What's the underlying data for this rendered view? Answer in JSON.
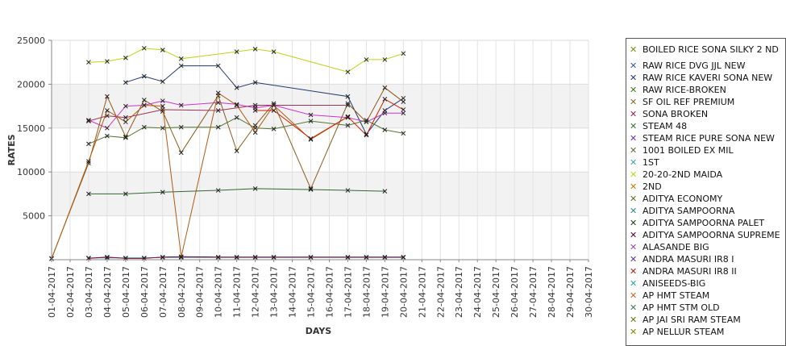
{
  "chart_data": {
    "type": "line",
    "xlabel": "DAYS",
    "ylabel": "RATES",
    "ylim": [
      0,
      25000
    ],
    "yticks": [
      5000,
      10000,
      15000,
      20000,
      25000
    ],
    "categories": [
      "01-04-2017",
      "02-04-2017",
      "03-04-2017",
      "04-04-2017",
      "05-04-2017",
      "06-04-2017",
      "07-04-2017",
      "08-04-2017",
      "09-04-2017",
      "10-04-2017",
      "11-04-2017",
      "12-04-2017",
      "13-04-2017",
      "14-04-2017",
      "15-04-2017",
      "16-04-2017",
      "17-04-2017",
      "18-04-2017",
      "19-04-2017",
      "20-04-2017",
      "21-04-2017",
      "22-04-2017",
      "23-04-2017",
      "24-04-2017",
      "25-04-2017",
      "26-04-2017",
      "27-04-2017",
      "28-04-2017",
      "29-04-2017",
      "30-04-2017"
    ],
    "grid": true,
    "legend_position": "right",
    "series": [
      {
        "name": "BOILED RICE SONA SILKY 2 ND",
        "color": "#bcd41c",
        "values": [
          null,
          null,
          22500,
          22600,
          23000,
          24100,
          23900,
          22900,
          null,
          null,
          23700,
          24000,
          23700,
          null,
          null,
          null,
          21400,
          22800,
          22800,
          23500,
          null,
          null,
          null,
          null,
          null,
          null,
          null,
          null,
          null,
          null
        ]
      },
      {
        "name": "RAW RICE DVG JJL NEW",
        "color": "#1f3a6e",
        "values": [
          null,
          null,
          null,
          null,
          20200,
          20900,
          20300,
          22100,
          null,
          22100,
          19600,
          20200,
          null,
          null,
          null,
          null,
          18600,
          14300,
          17000,
          18400,
          null,
          null,
          null,
          null,
          null,
          null,
          null,
          null,
          null,
          null
        ]
      },
      {
        "name": "RAW RICE KAVERI SONA NEW",
        "color": "#cc33cc",
        "values": [
          null,
          null,
          15900,
          15000,
          17500,
          17600,
          18100,
          17600,
          null,
          17900,
          17700,
          17300,
          17600,
          null,
          16500,
          null,
          16200,
          15700,
          16700,
          16700,
          null,
          null,
          null,
          null,
          null,
          null,
          null,
          null,
          null,
          null
        ]
      },
      {
        "name": "RAW RICE-BROKEN",
        "color": "#336633",
        "values": [
          null,
          null,
          7500,
          null,
          7500,
          null,
          7700,
          null,
          null,
          7900,
          null,
          8100,
          null,
          null,
          8000,
          null,
          7900,
          null,
          7800,
          null,
          null,
          null,
          null,
          null,
          null,
          null,
          null,
          null,
          null,
          null
        ]
      },
      {
        "name": "SF OIL REF PREMIUM",
        "color": "#8a5a1a",
        "values": [
          150,
          null,
          11000,
          18600,
          14000,
          18200,
          16900,
          12200,
          null,
          18700,
          12400,
          15300,
          17800,
          null,
          8100,
          null,
          17800,
          15700,
          19600,
          18000,
          null,
          null,
          null,
          null,
          null,
          null,
          null,
          null,
          null,
          null
        ]
      },
      {
        "name": "SONA BROKEN",
        "color": "#993355",
        "values": [
          null,
          null,
          15800,
          16400,
          16200,
          null,
          17100,
          null,
          null,
          17000,
          null,
          17600,
          null,
          null,
          null,
          null,
          17600,
          null,
          null,
          null,
          null,
          null,
          null,
          null,
          null,
          null,
          null,
          null,
          null,
          null
        ]
      },
      {
        "name": "STEAM 48",
        "color": "#557733",
        "values": [
          null,
          null,
          13200,
          14100,
          13900,
          15100,
          15000,
          15100,
          null,
          15100,
          16200,
          15000,
          14900,
          null,
          15800,
          null,
          15300,
          15900,
          14800,
          14400,
          null,
          null,
          null,
          null,
          null,
          null,
          null,
          null,
          null,
          null
        ]
      },
      {
        "name": "STEAM RICE PURE SONA NEW",
        "color": "#b05a10",
        "values": [
          100,
          null,
          11200,
          17000,
          15700,
          17600,
          17500,
          300,
          null,
          19000,
          17600,
          14500,
          17600,
          null,
          13700,
          null,
          16300,
          null,
          null,
          null,
          null,
          null,
          null,
          null,
          null,
          null,
          null,
          null,
          null,
          null
        ]
      },
      {
        "name": "1001 BOILED EX MIL",
        "color": "#cc2200",
        "values": [
          null,
          null,
          null,
          null,
          null,
          null,
          null,
          null,
          null,
          null,
          null,
          17000,
          17000,
          null,
          13800,
          null,
          16300,
          14200,
          18300,
          17100,
          null,
          null,
          null,
          null,
          null,
          null,
          null,
          null,
          null,
          null
        ]
      },
      {
        "name": "1ST",
        "color": "#33aaaa",
        "values": [
          null,
          null,
          200,
          200,
          200,
          200,
          250,
          250,
          null,
          250,
          250,
          250,
          250,
          null,
          250,
          null,
          250,
          250,
          250,
          250,
          null,
          null,
          null,
          null,
          null,
          null,
          null,
          null,
          null,
          null
        ]
      },
      {
        "name": "20-20-2ND MAIDA",
        "color": "#880033",
        "values": [
          null,
          null,
          150,
          300,
          150,
          150,
          300,
          350,
          null,
          300,
          300,
          300,
          300,
          null,
          300,
          null,
          300,
          300,
          300,
          300,
          null,
          null,
          null,
          null,
          null,
          null,
          null,
          null,
          null,
          null
        ]
      }
    ]
  },
  "legend_items": [
    {
      "label": "BOILED RICE SONA SILKY 2 ND",
      "color": "#7c8c10"
    },
    {
      "label": "RAW RICE DVG JJL NEW",
      "color": "#3355aa"
    },
    {
      "label": "RAW RICE KAVERI SONA NEW",
      "color": "#1f3a6e"
    },
    {
      "label": "RAW RICE-BROKEN",
      "color": "#3d7a1a"
    },
    {
      "label": "SF OIL REF PREMIUM",
      "color": "#8a6a2a"
    },
    {
      "label": "SONA BROKEN",
      "color": "#992255"
    },
    {
      "label": "STEAM 48",
      "color": "#337733"
    },
    {
      "label": "STEAM RICE PURE SONA NEW",
      "color": "#6633aa"
    },
    {
      "label": "1001 BOILED EX MIL",
      "color": "#666633"
    },
    {
      "label": "1ST",
      "color": "#33aaaa"
    },
    {
      "label": "20-20-2ND MAIDA",
      "color": "#bcd41c"
    },
    {
      "label": "2ND",
      "color": "#cc7700"
    },
    {
      "label": "ADITYA ECONOMY",
      "color": "#557722"
    },
    {
      "label": "ADITYA SAMPOORNA",
      "color": "#338899"
    },
    {
      "label": "ADITYA SAMPOORNA PALET",
      "color": "#224411"
    },
    {
      "label": "ADITYA SAMPOORNA SUPREME",
      "color": "#550033"
    },
    {
      "label": "ALASANDE BIG",
      "color": "#aa44aa"
    },
    {
      "label": "ANDRA MASURI IR8 I",
      "color": "#5533aa"
    },
    {
      "label": "ANDRA MASURI IR8 II",
      "color": "#aa2222"
    },
    {
      "label": "ANISEEDS-BIG",
      "color": "#22aaaa"
    },
    {
      "label": "AP HMT STEAM",
      "color": "#cc6622"
    },
    {
      "label": "AP HMT STM OLD",
      "color": "#447755"
    },
    {
      "label": "AP JAI SRI RAM STEAM",
      "color": "#667711"
    },
    {
      "label": "AP NELLUR STEAM",
      "color": "#888800"
    }
  ]
}
